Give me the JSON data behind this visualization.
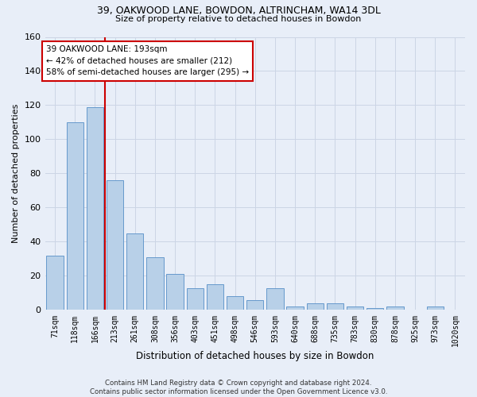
{
  "title1": "39, OAKWOOD LANE, BOWDON, ALTRINCHAM, WA14 3DL",
  "title2": "Size of property relative to detached houses in Bowdon",
  "xlabel": "Distribution of detached houses by size in Bowdon",
  "ylabel": "Number of detached properties",
  "categories": [
    "71sqm",
    "118sqm",
    "166sqm",
    "213sqm",
    "261sqm",
    "308sqm",
    "356sqm",
    "403sqm",
    "451sqm",
    "498sqm",
    "546sqm",
    "593sqm",
    "640sqm",
    "688sqm",
    "735sqm",
    "783sqm",
    "830sqm",
    "878sqm",
    "925sqm",
    "973sqm",
    "1020sqm"
  ],
  "values": [
    32,
    110,
    119,
    76,
    45,
    31,
    21,
    13,
    15,
    8,
    6,
    13,
    2,
    4,
    4,
    2,
    1,
    2,
    0,
    2,
    0
  ],
  "bar_color": "#b8d0e8",
  "bar_edge_color": "#6699cc",
  "grid_color": "#ccd5e5",
  "vline_x": 2.5,
  "vline_color": "#cc0000",
  "annotation_text": "39 OAKWOOD LANE: 193sqm\n← 42% of detached houses are smaller (212)\n58% of semi-detached houses are larger (295) →",
  "annotation_box_color": "#ffffff",
  "annotation_box_edge": "#cc0000",
  "ylim": [
    0,
    160
  ],
  "yticks": [
    0,
    20,
    40,
    60,
    80,
    100,
    120,
    140,
    160
  ],
  "footnote": "Contains HM Land Registry data © Crown copyright and database right 2024.\nContains public sector information licensed under the Open Government Licence v3.0.",
  "bg_color": "#e8eef8"
}
